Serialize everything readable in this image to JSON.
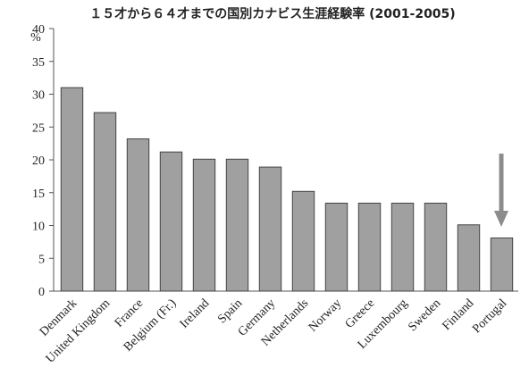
{
  "chart_data": {
    "type": "bar",
    "title": "１５才から６４才までの国別カナビス生涯経験率 (2001-2005)",
    "ylabel": "%",
    "categories": [
      "Denmark",
      "United Kingdom",
      "France",
      "Belgium (Fr.)",
      "Ireland",
      "Spain",
      "Germany",
      "Netherlands",
      "Norway",
      "Greece",
      "Luxembourg",
      "Sweden",
      "Finland",
      "Portugal"
    ],
    "values": [
      31,
      27.2,
      23.2,
      21.2,
      20.1,
      20.1,
      18.9,
      15.2,
      13.4,
      13.4,
      13.4,
      13.4,
      10.1,
      8.1
    ],
    "color": "#a0a0a0",
    "ylim": [
      0,
      40
    ],
    "yticks": [
      0,
      5,
      10,
      15,
      20,
      25,
      30,
      35,
      40
    ],
    "grid": false
  }
}
